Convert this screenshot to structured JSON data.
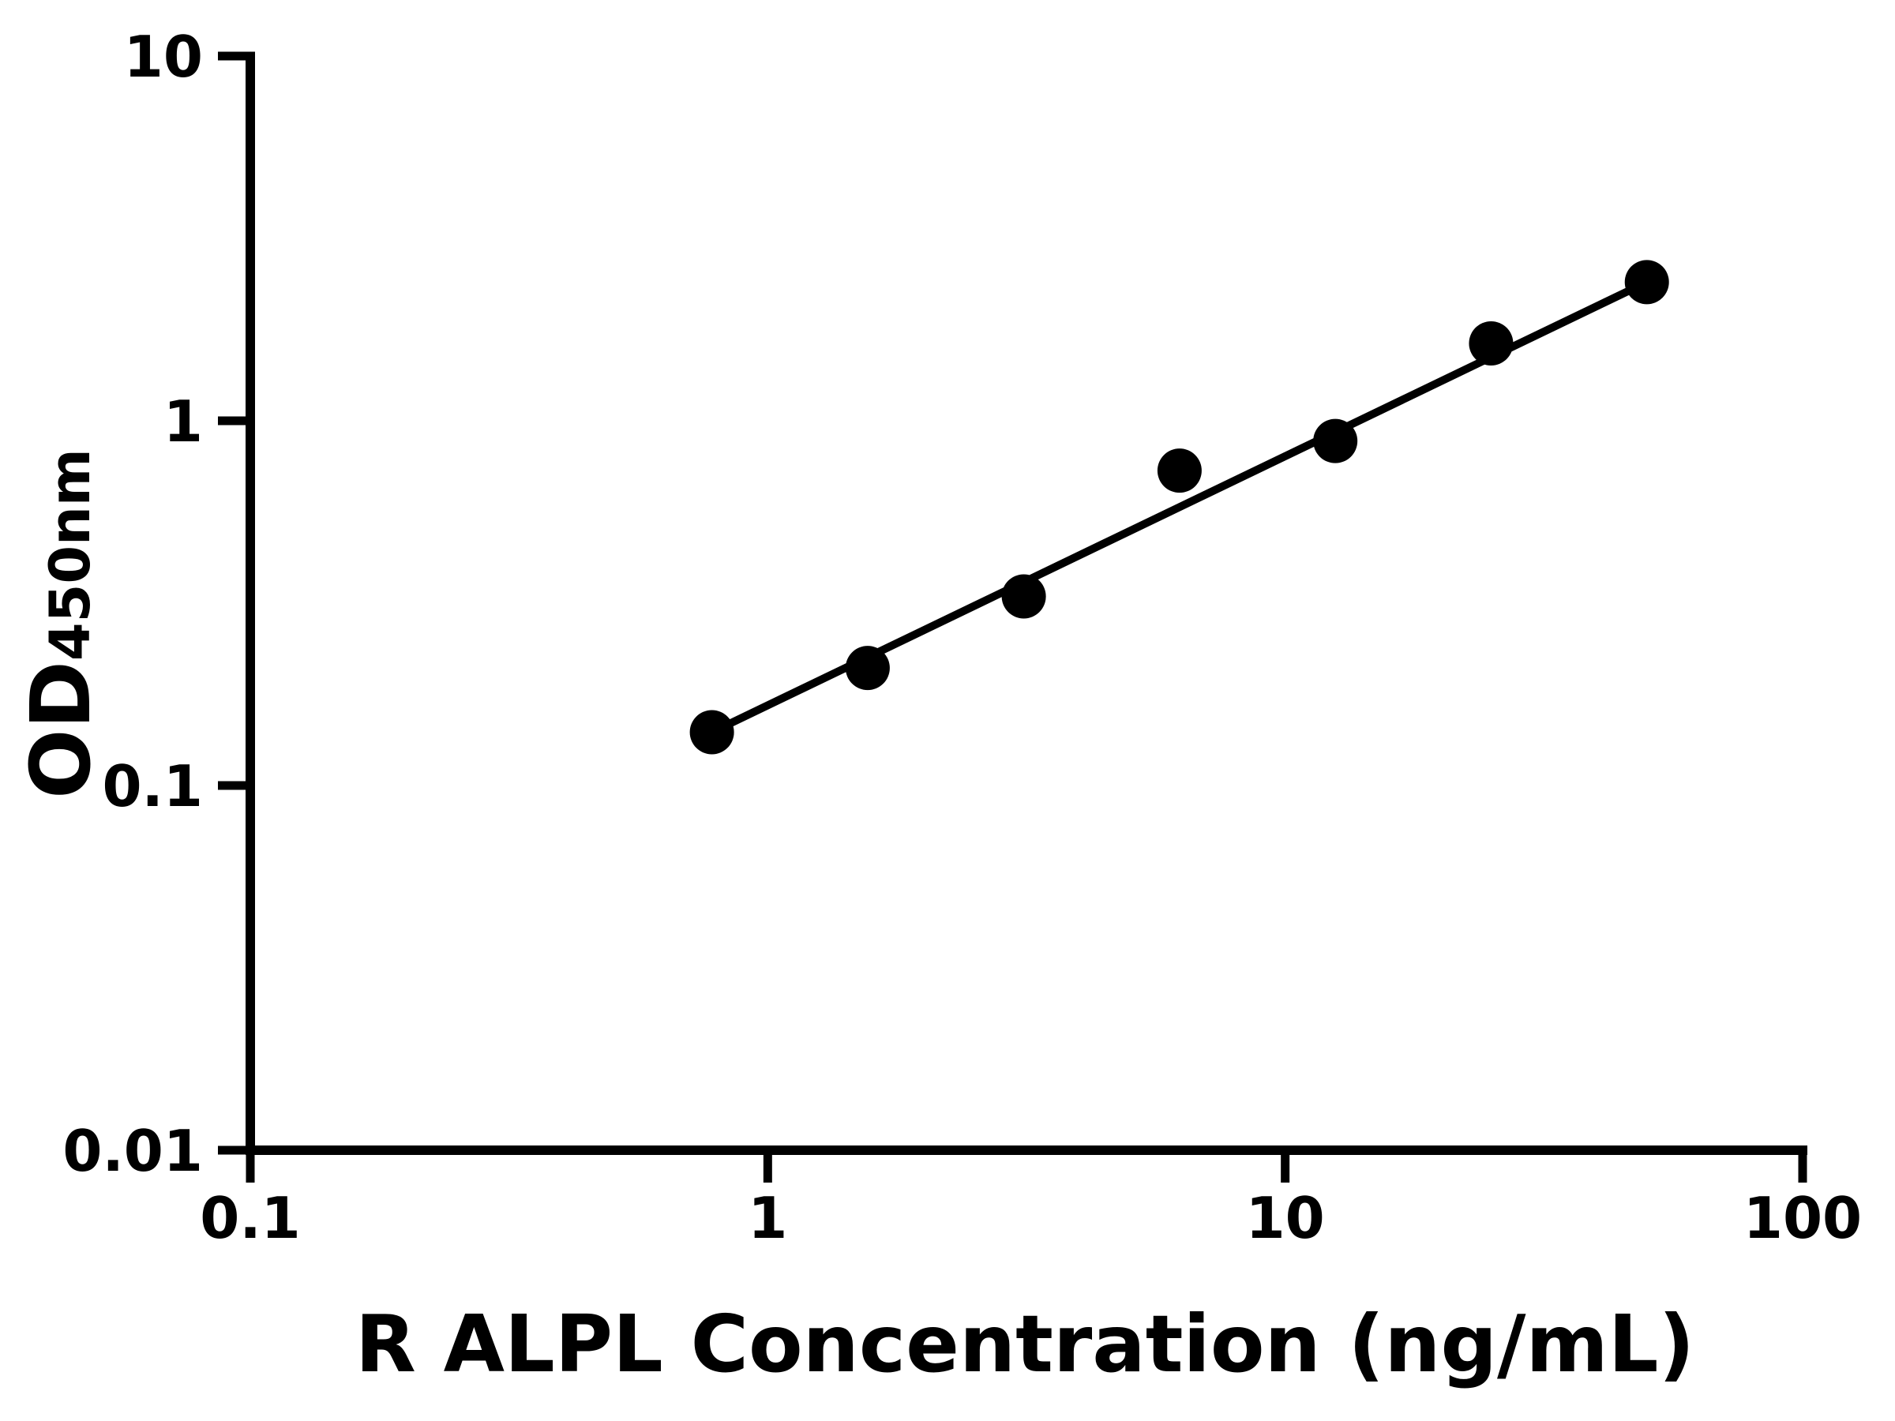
{
  "figure": {
    "background": "#ffffff",
    "foreground": "#000000"
  },
  "chart_data": {
    "type": "scatter",
    "title": "",
    "xlabel": "R ALPL Concentration (ng/mL)",
    "ylabel_main": "OD",
    "ylabel_sub": "450nm",
    "x_scale": "log",
    "y_scale": "log",
    "xlim": [
      0.1,
      100
    ],
    "ylim": [
      0.01,
      10
    ],
    "grid": false,
    "legend": false,
    "x_ticks": [
      {
        "value": 0.1,
        "label": "0.1"
      },
      {
        "value": 1,
        "label": "1"
      },
      {
        "value": 10,
        "label": "10"
      },
      {
        "value": 100,
        "label": "100"
      }
    ],
    "y_ticks": [
      {
        "value": 0.01,
        "label": "0.01"
      },
      {
        "value": 0.1,
        "label": "0.1"
      },
      {
        "value": 1,
        "label": "1"
      },
      {
        "value": 10,
        "label": "10"
      }
    ],
    "series": [
      {
        "name": "standard-curve",
        "marker": "filled-circle",
        "color": "#000000",
        "points": [
          {
            "x": 0.78,
            "y": 0.14
          },
          {
            "x": 1.56,
            "y": 0.21
          },
          {
            "x": 3.125,
            "y": 0.33
          },
          {
            "x": 6.25,
            "y": 0.73
          },
          {
            "x": 12.5,
            "y": 0.88
          },
          {
            "x": 25,
            "y": 1.63
          },
          {
            "x": 50,
            "y": 2.4
          }
        ]
      }
    ],
    "trendline": {
      "style": "straight-power-fit",
      "from_point": {
        "x": 0.78,
        "y": 0.14
      },
      "to_point": {
        "x": 50,
        "y": 2.4
      },
      "color": "#000000"
    }
  }
}
